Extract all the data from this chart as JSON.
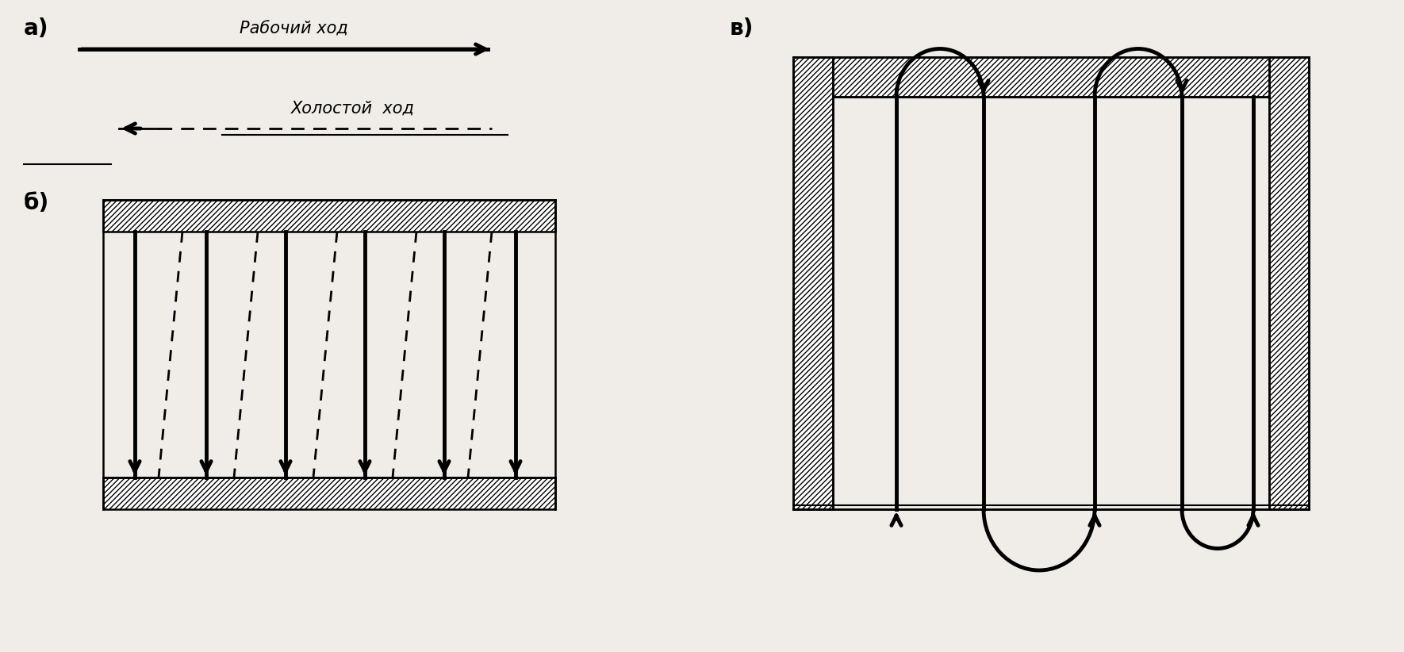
{
  "bg_color": "#f0ede8",
  "label_a": "а)",
  "label_b": "б)",
  "label_v": "в)",
  "text_working": "Рабочий ход",
  "text_idle": "Холостой  ход",
  "fig_width": 17.7,
  "fig_height": 8.22,
  "lw_thick": 3.5,
  "lw_medium": 2.0,
  "lw_thin": 1.5,
  "lw_border": 1.8,
  "arrow_mutation": 22
}
